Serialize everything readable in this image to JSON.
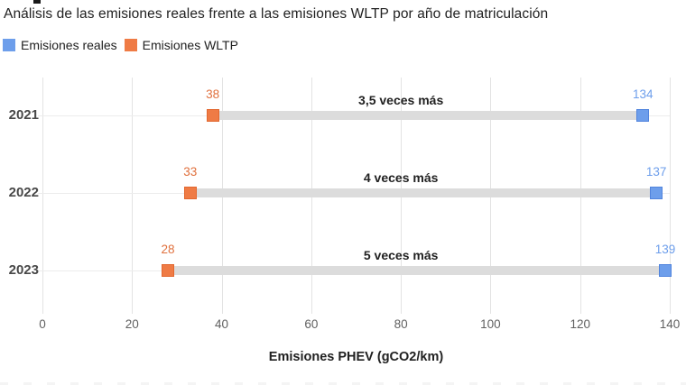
{
  "header": {
    "title": "Análisis de las emisiones reales frente a las emisiones WLTP por año de matriculación"
  },
  "legend": {
    "items": [
      {
        "label": "Emisiones reales",
        "color": "#6d9eeb"
      },
      {
        "label": "Emisiones WLTP",
        "color": "#ef7b45"
      }
    ]
  },
  "chart_data": {
    "type": "scatter",
    "subtype": "horizontal-dumbbell",
    "categories": [
      "2021",
      "2022",
      "2023"
    ],
    "series": [
      {
        "name": "Emisiones reales",
        "color": "#6d9eeb",
        "values": [
          134,
          137,
          139
        ]
      },
      {
        "name": "Emisiones WLTP",
        "color": "#ef7b45",
        "values": [
          38,
          33,
          28
        ]
      }
    ],
    "annotations": [
      "3,5 veces más",
      "4 veces más",
      "5 veces más"
    ],
    "title": "Análisis de las emisiones reales frente a las emisiones WLTP por año de matriculación",
    "xlabel": "Emisiones PHEV (gCO2/km)",
    "ylabel": "",
    "xlim": [
      0,
      140
    ],
    "xticks": [
      0,
      20,
      40,
      60,
      80,
      100,
      120,
      140
    ],
    "grid": true,
    "legend_position": "top-left",
    "connector_color": "#dcdcdc"
  }
}
